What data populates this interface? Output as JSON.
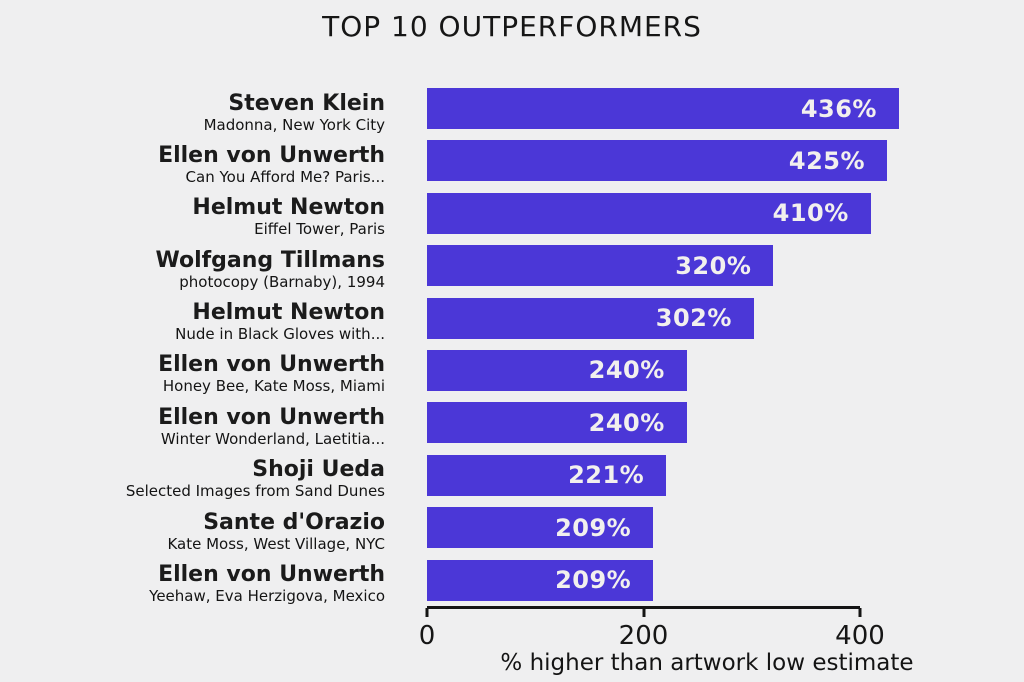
{
  "title": "TOP 10 OUTPERFORMERS",
  "colors": {
    "background": "#EFEFF0",
    "bar": "#4B37D7",
    "bar_value_text": "#F2F0EE",
    "text": "#161616"
  },
  "chart_data": {
    "type": "bar",
    "orientation": "horizontal",
    "title": "TOP 10 OUTPERFORMERS",
    "xlabel": "% higher than artwork low estimate",
    "xlim": [
      0,
      400
    ],
    "xticks": [
      0,
      200,
      400
    ],
    "xtick_labels": [
      "0",
      "200",
      "400"
    ],
    "grid": false,
    "legend": "none",
    "bar_color": "#4B37D7",
    "rows": [
      {
        "artist": "Steven Klein",
        "artwork": "Madonna, New York City",
        "value": 436,
        "value_label": "436%"
      },
      {
        "artist": "Ellen von Unwerth",
        "artwork": "Can You Afford Me? Paris...",
        "value": 425,
        "value_label": "425%"
      },
      {
        "artist": "Helmut Newton",
        "artwork": "Eiffel Tower, Paris",
        "value": 410,
        "value_label": "410%"
      },
      {
        "artist": "Wolfgang Tillmans",
        "artwork": "photocopy (Barnaby), 1994",
        "value": 320,
        "value_label": "320%"
      },
      {
        "artist": "Helmut Newton",
        "artwork": "Nude in Black Gloves with...",
        "value": 302,
        "value_label": "302%"
      },
      {
        "artist": "Ellen von Unwerth",
        "artwork": "Honey Bee, Kate Moss, Miami",
        "value": 240,
        "value_label": "240%"
      },
      {
        "artist": "Ellen von Unwerth",
        "artwork": "Winter Wonderland, Laetitia...",
        "value": 240,
        "value_label": "240%"
      },
      {
        "artist": "Shoji Ueda",
        "artwork": "Selected Images from Sand Dunes",
        "value": 221,
        "value_label": "221%"
      },
      {
        "artist": "Sante d'Orazio",
        "artwork": "Kate Moss, West Village, NYC",
        "value": 209,
        "value_label": "209%"
      },
      {
        "artist": "Ellen von Unwerth",
        "artwork": "Yeehaw, Eva Herzigova, Mexico",
        "value": 209,
        "value_label": "209%"
      }
    ]
  }
}
